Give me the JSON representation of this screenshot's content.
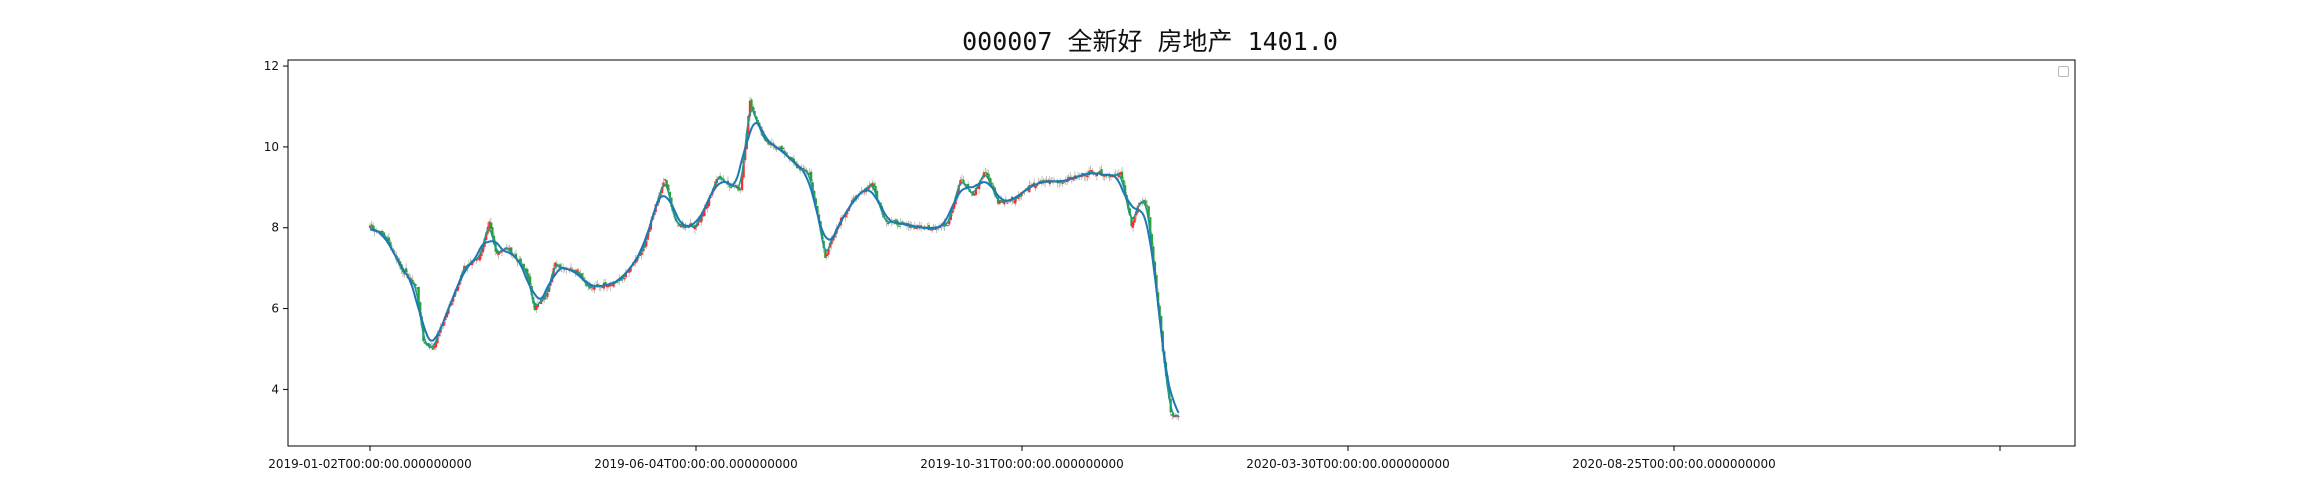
{
  "title": "000007 全新好 房地产 1401.0",
  "chart_data": {
    "type": "candlestick",
    "title": "000007 全新好 房地产 1401.0",
    "xlabel": "",
    "ylabel": "",
    "x_ticks": [
      "2019-01-02T00:00:00.000000000",
      "2019-06-04T00:00:00.000000000",
      "2019-10-31T00:00:00.000000000",
      "2020-03-30T00:00:00.000000000",
      "2020-08-25T00:00:00.000000000",
      ""
    ],
    "y_ticks": [
      4,
      6,
      8,
      10,
      12
    ],
    "ylim": [
      2.6,
      12.15
    ],
    "grid": false,
    "legend": {
      "placement": "top-right",
      "entries": []
    },
    "colors": {
      "up": "#ff2a2a",
      "down": "#2ca02c",
      "ma_line": "#1f77b4",
      "ma_line2": "#1a9a8a"
    },
    "series": [
      {
        "kind": "close_anchor",
        "note_index_unit": "trading-day index from 2019-01-02",
        "x": [
          0,
          10,
          20,
          30,
          34,
          40,
          50,
          60,
          70,
          76,
          80,
          88,
          96,
          100,
          105,
          112,
          118,
          125,
          132,
          140,
          150,
          160,
          168,
          175,
          180,
          188,
          195,
          200,
          208,
          215,
          222,
          228,
          236,
          242,
          252,
          260,
          268,
          272,
          280,
          290,
          300,
          310,
          320,
          328,
          335,
          345,
          352,
          360,
          368,
          376,
          384,
          392,
          400,
          410,
          420,
          430,
          440,
          450,
          460,
          470,
          478,
          485,
          490,
          495,
          500,
          505,
          510,
          515
        ],
        "y": [
          8.05,
          7.8,
          7.0,
          6.5,
          5.2,
          5.0,
          6.0,
          7.0,
          7.3,
          8.1,
          7.4,
          7.5,
          7.1,
          6.9,
          6.0,
          6.3,
          7.1,
          7.0,
          6.95,
          6.5,
          6.6,
          6.7,
          7.1,
          7.5,
          8.3,
          9.2,
          8.1,
          8.05,
          8.05,
          8.6,
          9.3,
          9.1,
          8.95,
          11.1,
          10.1,
          10.0,
          9.7,
          9.5,
          9.35,
          7.3,
          8.2,
          8.8,
          9.1,
          8.2,
          8.1,
          8.05,
          8.0,
          8.0,
          8.1,
          9.2,
          8.8,
          9.4,
          8.65,
          8.7,
          9.0,
          9.15,
          9.15,
          9.25,
          9.4,
          9.3,
          9.35,
          8.1,
          8.6,
          8.6,
          6.8,
          5.0,
          3.4,
          3.3
        ]
      }
    ]
  }
}
